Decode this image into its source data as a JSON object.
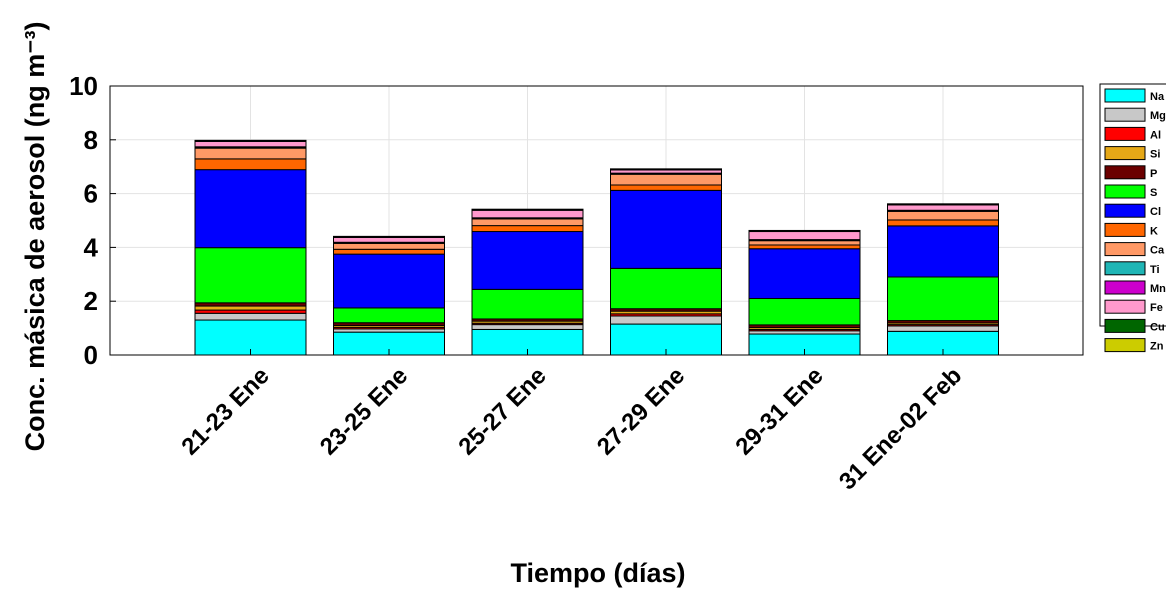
{
  "chart_data": {
    "type": "bar",
    "stacked": true,
    "title": "",
    "xlabel": "Tiempo (días)",
    "ylabel": "Conc. másica de aerosol (ng m⁻³)",
    "ylim": [
      0,
      10
    ],
    "yticks": [
      "0",
      "2",
      "4",
      "6",
      "8",
      "10"
    ],
    "grid": true,
    "legend_position": "right",
    "categories": [
      "21-23 Ene",
      "23-25 Ene",
      "25-27 Ene",
      "27-29 Ene",
      "29-31 Ene",
      "31 Ene-02 Feb"
    ],
    "series": [
      {
        "name": "Na",
        "color": "#00ffff",
        "values": [
          1.3,
          0.85,
          0.95,
          1.15,
          0.78,
          0.88
        ]
      },
      {
        "name": "Mg",
        "color": "#c8c8c8",
        "values": [
          0.25,
          0.12,
          0.18,
          0.3,
          0.12,
          0.2
        ]
      },
      {
        "name": "Al",
        "color": "#ff0000",
        "values": [
          0.12,
          0.06,
          0.05,
          0.08,
          0.05,
          0.05
        ]
      },
      {
        "name": "Si",
        "color": "#e6a817",
        "values": [
          0.15,
          0.07,
          0.08,
          0.1,
          0.07,
          0.06
        ]
      },
      {
        "name": "P",
        "color": "#6b0000",
        "values": [
          0.12,
          0.1,
          0.08,
          0.09,
          0.1,
          0.09
        ]
      },
      {
        "name": "S",
        "color": "#00ff00",
        "values": [
          2.05,
          0.55,
          1.1,
          1.5,
          0.98,
          1.62
        ]
      },
      {
        "name": "Cl",
        "color": "#0000ff",
        "values": [
          2.9,
          2.0,
          2.15,
          2.9,
          1.85,
          1.9
        ]
      },
      {
        "name": "K",
        "color": "#ff6600",
        "values": [
          0.4,
          0.18,
          0.22,
          0.2,
          0.14,
          0.22
        ]
      },
      {
        "name": "Ca",
        "color": "#ff9966",
        "values": [
          0.4,
          0.22,
          0.25,
          0.4,
          0.16,
          0.32
        ]
      },
      {
        "name": "Ti",
        "color": "#1fb5b5",
        "values": [
          0.03,
          0.02,
          0.02,
          0.02,
          0.02,
          0.02
        ]
      },
      {
        "name": "Mn",
        "color": "#cc00cc",
        "values": [
          0.02,
          0.02,
          0.02,
          0.02,
          0.02,
          0.02
        ]
      },
      {
        "name": "Fe",
        "color": "#ff99cc",
        "values": [
          0.2,
          0.18,
          0.28,
          0.12,
          0.3,
          0.2
        ]
      },
      {
        "name": "Cu",
        "color": "#006600",
        "values": [
          0.02,
          0.02,
          0.02,
          0.02,
          0.02,
          0.02
        ]
      },
      {
        "name": "Zn",
        "color": "#cccc00",
        "values": [
          0.02,
          0.02,
          0.02,
          0.02,
          0.02,
          0.02
        ]
      }
    ]
  }
}
